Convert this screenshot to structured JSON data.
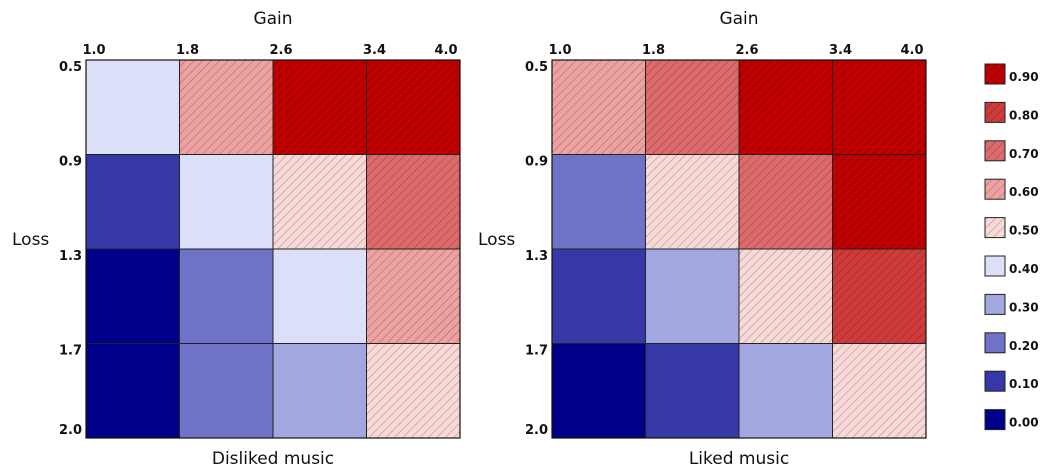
{
  "chart_data": [
    {
      "type": "heatmap",
      "title": "",
      "xlabel": "Disliked music",
      "x_axis_title": "Gain",
      "ylabel": "Loss",
      "x_ticks": [
        "1.0",
        "1.8",
        "2.6",
        "3.4",
        "4.0"
      ],
      "y_ticks": [
        "0.5",
        "0.9",
        "1.3",
        "1.7",
        "2.0"
      ],
      "values": [
        [
          0.4,
          0.6,
          0.9,
          0.9
        ],
        [
          0.1,
          0.4,
          0.5,
          0.7
        ],
        [
          0.0,
          0.2,
          0.4,
          0.6
        ],
        [
          0.0,
          0.2,
          0.3,
          0.5
        ]
      ]
    },
    {
      "type": "heatmap",
      "title": "",
      "xlabel": "Liked music",
      "x_axis_title": "Gain",
      "ylabel": "Loss",
      "x_ticks": [
        "1.0",
        "1.8",
        "2.6",
        "3.4",
        "4.0"
      ],
      "y_ticks": [
        "0.5",
        "0.9",
        "1.3",
        "1.7",
        "2.0"
      ],
      "values": [
        [
          0.6,
          0.7,
          0.9,
          0.9
        ],
        [
          0.2,
          0.5,
          0.7,
          0.9
        ],
        [
          0.1,
          0.3,
          0.5,
          0.8
        ],
        [
          0.0,
          0.1,
          0.3,
          0.5
        ]
      ]
    }
  ],
  "legend": {
    "placement": "right",
    "entries": [
      {
        "value": 0.9,
        "label": "0.90",
        "color": "#c00000",
        "hatch": true
      },
      {
        "value": 0.8,
        "label": "0.80",
        "color": "#cf3a3a",
        "hatch": true
      },
      {
        "value": 0.7,
        "label": "0.70",
        "color": "#de6b6b",
        "hatch": true
      },
      {
        "value": 0.6,
        "label": "0.60",
        "color": "#eda1a1",
        "hatch": true
      },
      {
        "value": 0.5,
        "label": "0.50",
        "color": "#f9d8d8",
        "hatch": true
      },
      {
        "value": 0.4,
        "label": "0.40",
        "color": "#dcdff8",
        "hatch": false
      },
      {
        "value": 0.3,
        "label": "0.30",
        "color": "#a3a7e0",
        "hatch": false
      },
      {
        "value": 0.2,
        "label": "0.20",
        "color": "#6f72c6",
        "hatch": false
      },
      {
        "value": 0.1,
        "label": "0.10",
        "color": "#3638a8",
        "hatch": false
      },
      {
        "value": 0.0,
        "label": "0.00",
        "color": "#00008a",
        "hatch": false
      }
    ]
  }
}
